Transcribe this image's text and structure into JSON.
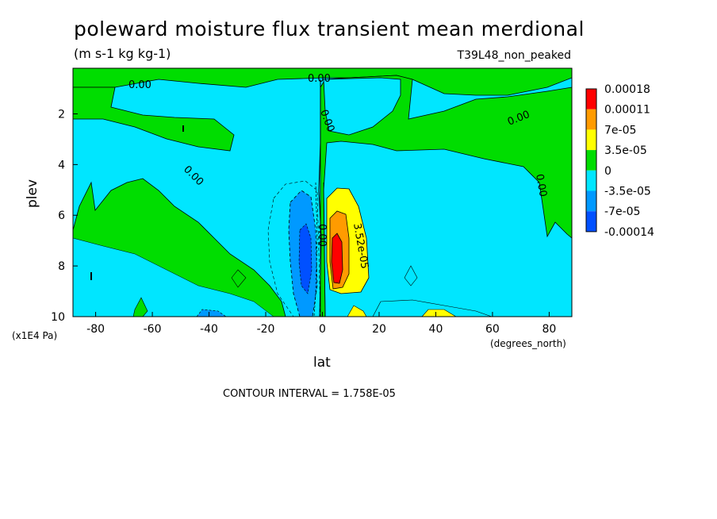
{
  "header": {
    "title": "poleward moisture flux transient mean merdional",
    "units": "(m s-1 kg kg-1)",
    "dataset": "T39L48_non_peaked"
  },
  "footer": {
    "contour_interval": "CONTOUR INTERVAL = 1.758E-05"
  },
  "chart_data": {
    "type": "heatmap",
    "title": "poleward moisture flux transient mean merdional",
    "xlabel": "lat",
    "x_units": "(degrees_north)",
    "ylabel": "plev",
    "y_units": "(x1E4 Pa)",
    "xlim": [
      -88,
      88
    ],
    "ylim": [
      10,
      0.2
    ],
    "x_ticks": [
      -80,
      -60,
      -40,
      -20,
      0,
      20,
      40,
      60,
      80
    ],
    "y_ticks": [
      2,
      4,
      6,
      8,
      10
    ],
    "legend": {
      "placement": "right",
      "levels": [
        "0.00018",
        "0.00011",
        "7e-05",
        "3.5e-05",
        "0",
        "-3.5e-05",
        "-7e-05",
        "-0.00014"
      ],
      "colors": [
        "#ff0000",
        "#ff9b00",
        "#ffff00",
        "#00dd00",
        "#00e6ff",
        "#0099ff",
        "#0050ff"
      ]
    },
    "contour_labels": [
      "0.00",
      "0.00",
      "0.00",
      "0.00",
      "0.00",
      "0.00",
      "0.00",
      "3.52e-05"
    ],
    "regions": [
      {
        "name": "upper-green-band",
        "value_class": "0 to 3.5e-05",
        "lat": [
          -88,
          88
        ],
        "plev": [
          0.2,
          1
        ]
      },
      {
        "name": "southern-cyan",
        "value_class": "-3.5e-05 to 0",
        "lat": [
          -88,
          0
        ],
        "plev": [
          1,
          10
        ]
      },
      {
        "name": "northern-green",
        "value_class": "0 to 3.5e-05",
        "lat": [
          0,
          88
        ],
        "plev": [
          2,
          10
        ]
      },
      {
        "name": "negative-core",
        "value_class": "-7e-05 to -3.5e-05",
        "lat": [
          -10,
          -2
        ],
        "plev": [
          5,
          9.5
        ]
      },
      {
        "name": "positive-core",
        "value_class": "0.00011 to 0.00018",
        "lat": [
          4,
          8
        ],
        "plev": [
          6,
          9
        ]
      }
    ]
  }
}
